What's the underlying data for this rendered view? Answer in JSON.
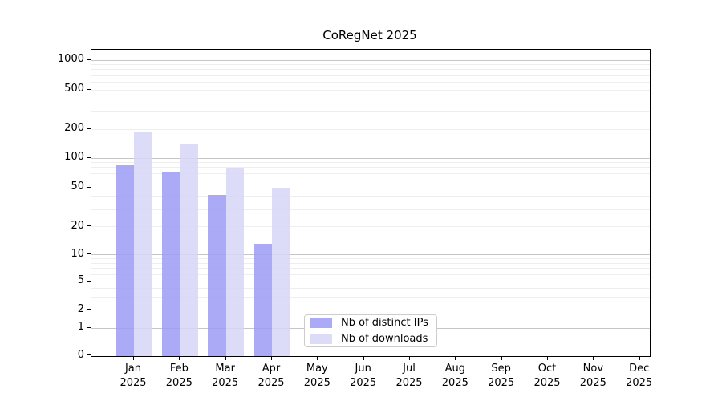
{
  "chart_data": {
    "type": "bar",
    "title": "CoRegNet 2025",
    "categories": [
      "Jan",
      "Feb",
      "Mar",
      "Apr",
      "May",
      "Jun",
      "Jul",
      "Aug",
      "Sep",
      "Oct",
      "Nov",
      "Dec"
    ],
    "xtick_year": "2025",
    "series": [
      {
        "name": "Nb of distinct IPs",
        "color": "#9b9bf4",
        "values": [
          85,
          72,
          42,
          13,
          null,
          null,
          null,
          null,
          null,
          null,
          null,
          null
        ]
      },
      {
        "name": "Nb of downloads",
        "color": "#d6d6f8",
        "values": [
          190,
          140,
          80,
          50,
          null,
          null,
          null,
          null,
          null,
          null,
          null,
          null
        ]
      }
    ],
    "xlabel": "",
    "ylabel": "",
    "yscale": "log-with-zero",
    "yticks": [
      0,
      1,
      2,
      5,
      10,
      20,
      50,
      100,
      200,
      500,
      1000
    ],
    "ylim": [
      0,
      1300
    ],
    "grid": "horizontal major+minor",
    "legend_position": "lower center"
  }
}
